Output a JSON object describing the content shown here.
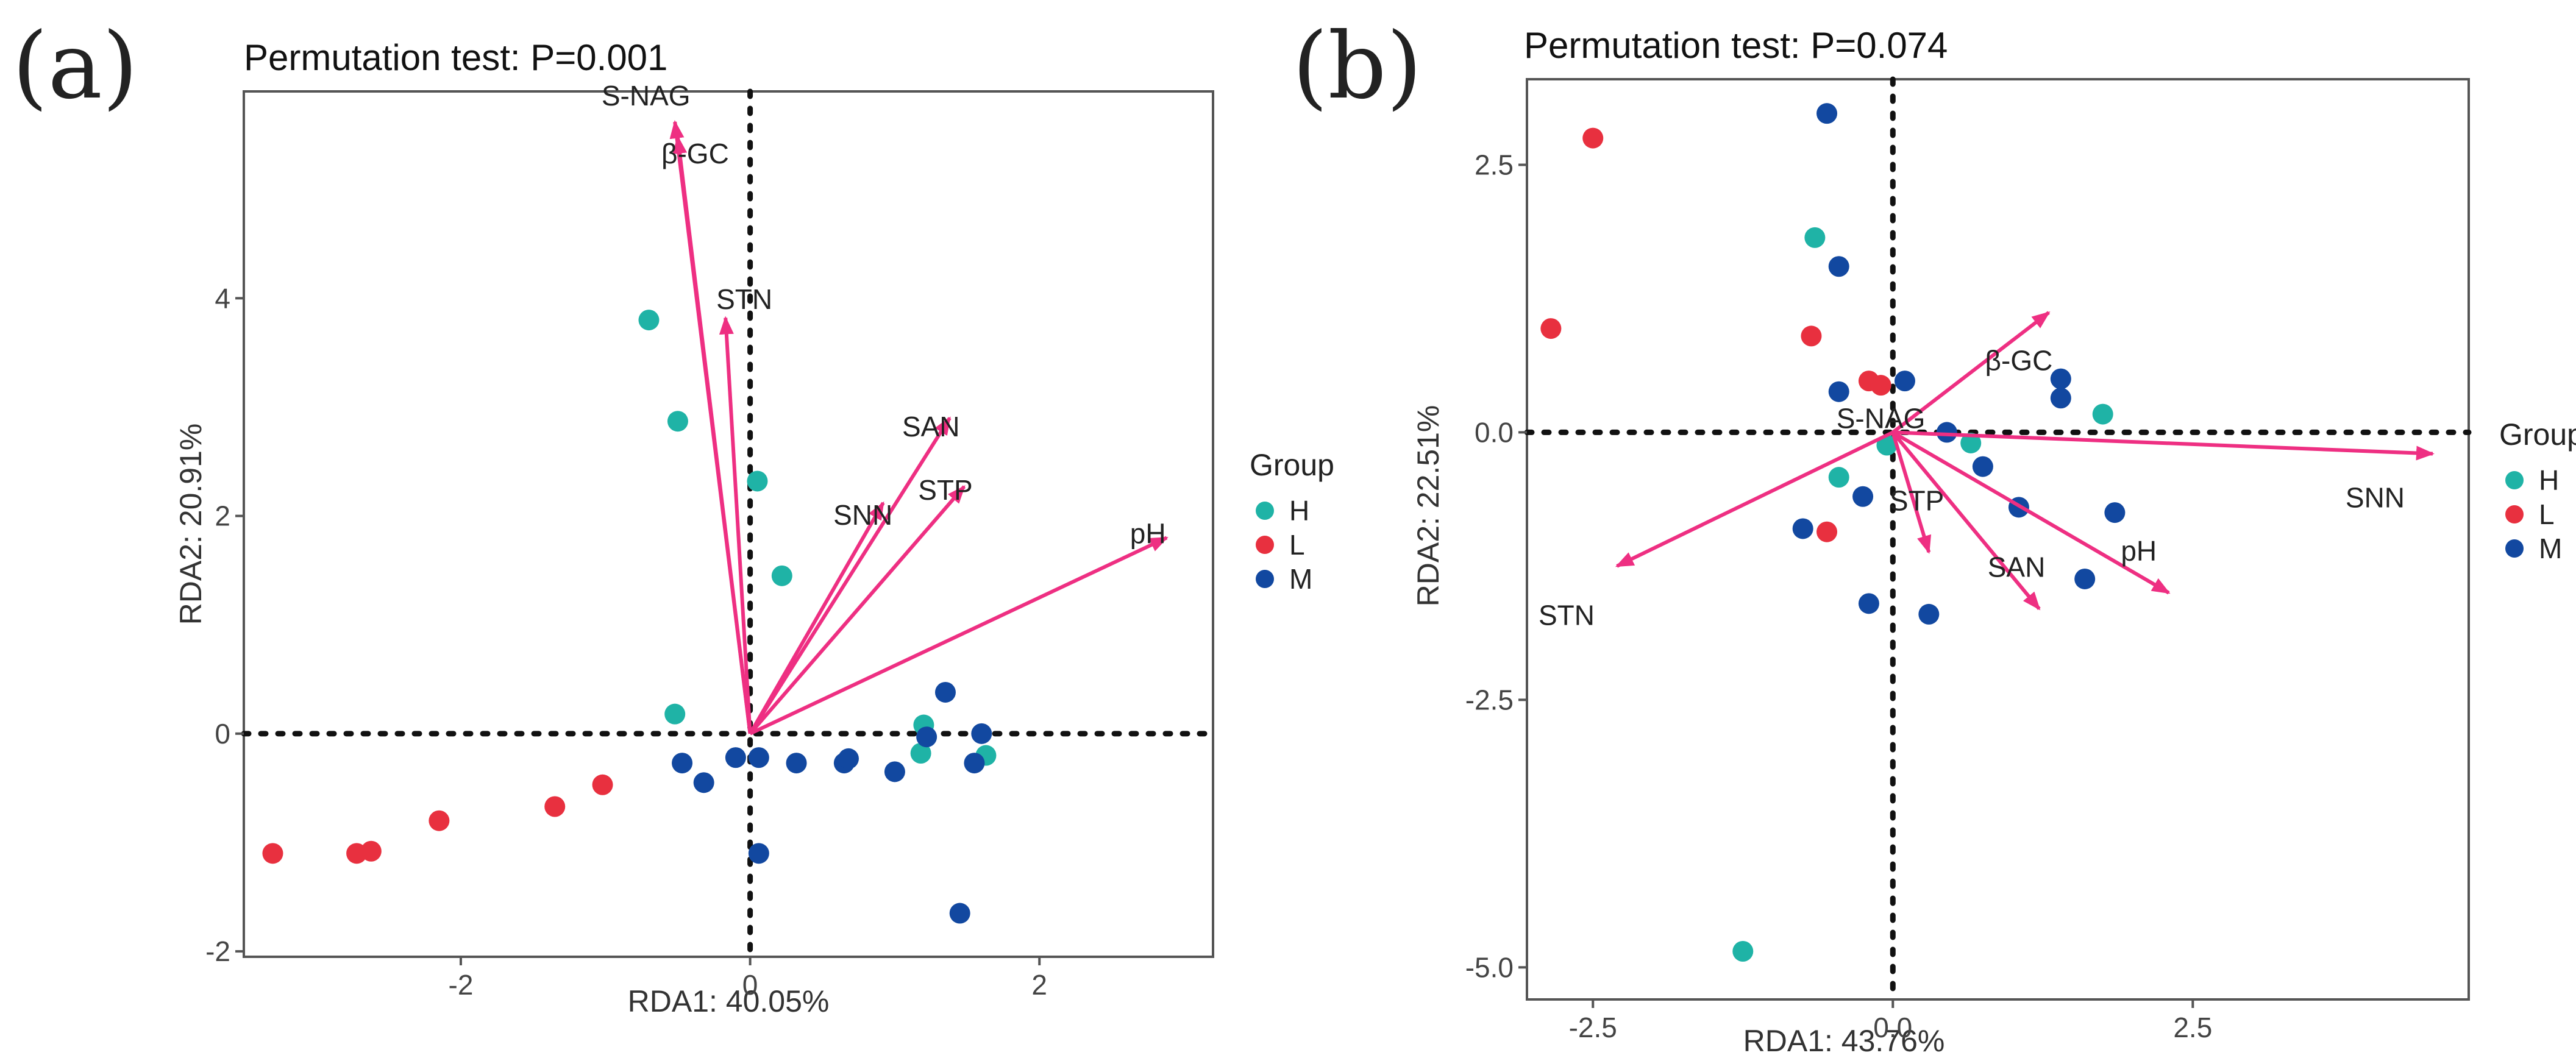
{
  "colors": {
    "H": "#1fb3a6",
    "L": "#e8303f",
    "M": "#1248a0",
    "arrow": "#ee2f82",
    "frame": "#555555",
    "ref_line": "#111111"
  },
  "chart_data": [
    {
      "type": "scatter",
      "panel": "(a)",
      "title": "Permutation test: P=0.001",
      "xlabel": "RDA1: 40.05%",
      "ylabel": "RDA2: 20.91%",
      "xlim": [
        -3.5,
        3.2
      ],
      "ylim": [
        -2.05,
        5.9
      ],
      "xticks": [
        -2,
        0,
        2
      ],
      "yticks": [
        -2,
        0,
        2,
        4
      ],
      "xtick_labels": [
        "-2",
        "0",
        "2"
      ],
      "ytick_labels": [
        "-2",
        "0",
        "2",
        "4"
      ],
      "legend": {
        "title": "Group",
        "position": "right",
        "entries": [
          "H",
          "L",
          "M"
        ]
      },
      "points": [
        {
          "g": "H",
          "x": -0.7,
          "y": 3.8
        },
        {
          "g": "H",
          "x": -0.5,
          "y": 2.87
        },
        {
          "g": "H",
          "x": 0.05,
          "y": 2.32
        },
        {
          "g": "H",
          "x": 0.22,
          "y": 1.45
        },
        {
          "g": "H",
          "x": -0.52,
          "y": 0.18
        },
        {
          "g": "H",
          "x": 1.2,
          "y": 0.08
        },
        {
          "g": "H",
          "x": 1.18,
          "y": -0.18
        },
        {
          "g": "H",
          "x": 1.63,
          "y": -0.2
        },
        {
          "g": "L",
          "x": -3.3,
          "y": -1.1
        },
        {
          "g": "L",
          "x": -2.72,
          "y": -1.1
        },
        {
          "g": "L",
          "x": -2.62,
          "y": -1.08
        },
        {
          "g": "L",
          "x": -2.15,
          "y": -0.8
        },
        {
          "g": "L",
          "x": -1.35,
          "y": -0.67
        },
        {
          "g": "L",
          "x": -1.02,
          "y": -0.47
        },
        {
          "g": "M",
          "x": -0.47,
          "y": -0.27
        },
        {
          "g": "M",
          "x": -0.32,
          "y": -0.45
        },
        {
          "g": "M",
          "x": -0.1,
          "y": -0.22
        },
        {
          "g": "M",
          "x": 0.06,
          "y": -0.22
        },
        {
          "g": "M",
          "x": 0.06,
          "y": -1.1
        },
        {
          "g": "M",
          "x": 0.32,
          "y": -0.27
        },
        {
          "g": "M",
          "x": 0.65,
          "y": -0.27
        },
        {
          "g": "M",
          "x": 0.68,
          "y": -0.23
        },
        {
          "g": "M",
          "x": 1.0,
          "y": -0.35
        },
        {
          "g": "M",
          "x": 1.22,
          "y": -0.03
        },
        {
          "g": "M",
          "x": 1.35,
          "y": 0.38
        },
        {
          "g": "M",
          "x": 1.55,
          "y": -0.27
        },
        {
          "g": "M",
          "x": 1.6,
          "y": 0.0
        },
        {
          "g": "M",
          "x": 1.45,
          "y": -1.65
        }
      ],
      "vectors": [
        {
          "label": "S-NAG",
          "x": -0.52,
          "y": 5.62,
          "lx": -0.72,
          "ly": 5.77
        },
        {
          "label": "β-GC",
          "x": -0.5,
          "y": 5.48,
          "lx": -0.38,
          "ly": 5.24
        },
        {
          "label": "STN",
          "x": -0.17,
          "y": 3.82,
          "lx": -0.04,
          "ly": 3.9
        },
        {
          "label": "SAN",
          "x": 1.38,
          "y": 2.9,
          "lx": 1.25,
          "ly": 2.73
        },
        {
          "label": "SNN",
          "x": 0.92,
          "y": 2.12,
          "lx": 0.78,
          "ly": 1.92
        },
        {
          "label": "STP",
          "x": 1.48,
          "y": 2.27,
          "lx": 1.35,
          "ly": 2.15
        },
        {
          "label": "pH",
          "x": 2.88,
          "y": 1.8,
          "lx": 2.75,
          "ly": 1.75
        }
      ]
    },
    {
      "type": "scatter",
      "panel": "(b)",
      "title": "Permutation test: P=0.074",
      "xlabel": "RDA1: 43.76%",
      "ylabel": "RDA2: 22.51%",
      "xlim": [
        -3.05,
        4.8
      ],
      "ylim": [
        -5.3,
        3.3
      ],
      "xticks": [
        -2.5,
        0.0,
        2.5
      ],
      "yticks": [
        -5.0,
        -2.5,
        0.0,
        2.5
      ],
      "xtick_labels": [
        "-2.5",
        "0.0",
        "2.5"
      ],
      "ytick_labels": [
        "-5.0",
        "-2.5",
        "0.0",
        "2.5"
      ],
      "legend": {
        "title": "Group",
        "position": "right",
        "entries": [
          "H",
          "L",
          "M"
        ]
      },
      "points": [
        {
          "g": "H",
          "x": -0.65,
          "y": 1.82
        },
        {
          "g": "H",
          "x": -0.05,
          "y": -0.12
        },
        {
          "g": "H",
          "x": 0.65,
          "y": -0.1
        },
        {
          "g": "H",
          "x": 1.75,
          "y": 0.17
        },
        {
          "g": "H",
          "x": -0.45,
          "y": -0.42
        },
        {
          "g": "H",
          "x": -1.25,
          "y": -4.85
        },
        {
          "g": "L",
          "x": -2.5,
          "y": 2.75
        },
        {
          "g": "L",
          "x": -2.85,
          "y": 0.97
        },
        {
          "g": "L",
          "x": -0.68,
          "y": 0.9
        },
        {
          "g": "L",
          "x": -0.2,
          "y": 0.48
        },
        {
          "g": "L",
          "x": -0.1,
          "y": 0.44
        },
        {
          "g": "L",
          "x": -0.55,
          "y": -0.93
        },
        {
          "g": "M",
          "x": -0.55,
          "y": 2.98
        },
        {
          "g": "M",
          "x": -0.45,
          "y": 1.55
        },
        {
          "g": "M",
          "x": -0.45,
          "y": 0.38
        },
        {
          "g": "M",
          "x": 0.1,
          "y": 0.48
        },
        {
          "g": "M",
          "x": 0.45,
          "y": 0.0
        },
        {
          "g": "M",
          "x": 0.75,
          "y": -0.32
        },
        {
          "g": "M",
          "x": 1.05,
          "y": -0.7
        },
        {
          "g": "M",
          "x": 1.4,
          "y": 0.5
        },
        {
          "g": "M",
          "x": 1.4,
          "y": 0.32
        },
        {
          "g": "M",
          "x": 1.85,
          "y": -0.75
        },
        {
          "g": "M",
          "x": 1.6,
          "y": -1.37
        },
        {
          "g": "M",
          "x": -0.25,
          "y": -0.6
        },
        {
          "g": "M",
          "x": -0.75,
          "y": -0.9
        },
        {
          "g": "M",
          "x": -0.2,
          "y": -1.6
        },
        {
          "g": "M",
          "x": 0.3,
          "y": -1.7
        }
      ],
      "vectors": [
        {
          "label": "β-GC",
          "x": 1.3,
          "y": 1.12,
          "lx": 1.05,
          "ly": 0.58
        },
        {
          "label": "S-NAG",
          "x": 0.0,
          "y": 0.0,
          "lx": -0.1,
          "ly": 0.04
        },
        {
          "label": "SNN",
          "x": 4.5,
          "y": -0.2,
          "lx": 4.02,
          "ly": -0.7
        },
        {
          "label": "STN",
          "x": -2.3,
          "y": -1.25,
          "lx": -2.72,
          "ly": -1.8
        },
        {
          "label": "STP",
          "x": 0.3,
          "y": -1.12,
          "lx": 0.2,
          "ly": -0.73
        },
        {
          "label": "SAN",
          "x": 1.22,
          "y": -1.65,
          "lx": 1.03,
          "ly": -1.35
        },
        {
          "label": "pH",
          "x": 2.3,
          "y": -1.5,
          "lx": 2.05,
          "ly": -1.2
        }
      ]
    }
  ]
}
